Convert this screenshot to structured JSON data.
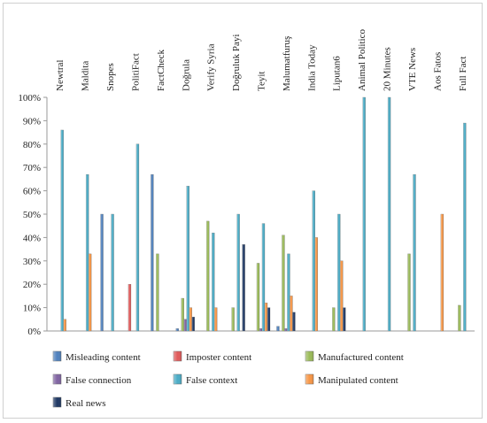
{
  "chart_data": {
    "type": "bar",
    "orientation": "vertical",
    "category_labels_position": "top",
    "category_labels_rotation": "rotated 90 degrees, reading bottom-to-top",
    "categories": [
      "Newtral",
      "Maldita",
      "Snopes",
      "PolitiFact",
      "FactCheck",
      "Doğrula",
      "Verify Syria",
      "Doğruluk Payi",
      "Teyit",
      "Malumatfuruş",
      "India Today",
      "Liputan6",
      "Animal Politico",
      "20 Minutes",
      "VTE News",
      "Aos Fatos",
      "Full Fact"
    ],
    "y_tick_labels": [
      "0%",
      "10%",
      "20%",
      "30%",
      "40%",
      "50%",
      "60%",
      "70%",
      "80%",
      "90%",
      "100%"
    ],
    "ylim": [
      0,
      100
    ],
    "y_unit": "%",
    "grid": false,
    "legend_position": "bottom",
    "series": [
      {
        "name": "Misleading content",
        "color": "#4f81bd",
        "values": [
          0,
          0,
          50,
          0,
          67,
          1,
          0,
          0,
          0,
          2,
          0,
          0,
          0,
          0,
          0,
          0,
          0
        ]
      },
      {
        "name": "Imposter content",
        "color": "#e05a5a",
        "values": [
          0,
          0,
          0,
          20,
          0,
          0,
          0,
          0,
          0,
          0,
          0,
          0,
          0,
          0,
          0,
          0,
          0
        ]
      },
      {
        "name": "Manufactured content",
        "color": "#9bbb59",
        "values": [
          0,
          0,
          0,
          0,
          33,
          14,
          47,
          10,
          29,
          41,
          0,
          10,
          0,
          0,
          33,
          0,
          11
        ]
      },
      {
        "name": "False connection",
        "color": "#8064a2",
        "values": [
          0,
          0,
          0,
          0,
          0,
          5,
          0,
          0,
          1,
          1,
          0,
          0,
          0,
          0,
          0,
          0,
          0
        ]
      },
      {
        "name": "False context",
        "color": "#4bacc6",
        "values": [
          86,
          67,
          50,
          80,
          0,
          62,
          42,
          50,
          46,
          33,
          60,
          50,
          100,
          100,
          67,
          0,
          89
        ]
      },
      {
        "name": "Manipulated content",
        "color": "#f79646",
        "values": [
          5,
          33,
          0,
          0,
          0,
          10,
          10,
          0,
          12,
          15,
          40,
          30,
          0,
          0,
          0,
          50,
          0
        ]
      },
      {
        "name": "Real news",
        "color": "#1f3864",
        "values": [
          0,
          0,
          0,
          0,
          0,
          6,
          0,
          37,
          10,
          8,
          0,
          10,
          0,
          0,
          0,
          0,
          0
        ]
      }
    ]
  }
}
